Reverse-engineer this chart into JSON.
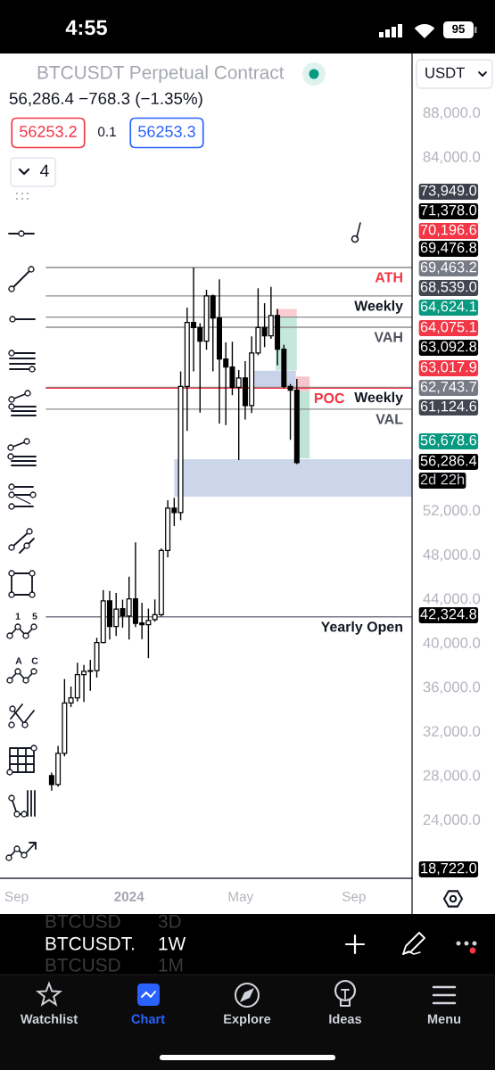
{
  "chart_data": {
    "type": "candlestick",
    "title": "BTCUSDT Perpetual Contract",
    "subtitle": "56,286.4 −768.3 (−1.35%)",
    "color": "#000000",
    "x": [
      "2023-10-09",
      "2023-10-16",
      "2023-10-23",
      "2023-10-30",
      "2023-11-06",
      "2023-11-13",
      "2023-11-20",
      "2023-11-27",
      "2023-12-04",
      "2023-12-11",
      "2023-12-18",
      "2023-12-25",
      "2024-01-01",
      "2024-01-08",
      "2024-01-15",
      "2024-01-22",
      "2024-01-29",
      "2024-02-05",
      "2024-02-12",
      "2024-02-19",
      "2024-02-26",
      "2024-03-04",
      "2024-03-11",
      "2024-03-18",
      "2024-03-25",
      "2024-04-01",
      "2024-04-08",
      "2024-04-15",
      "2024-04-22",
      "2024-04-29",
      "2024-05-06",
      "2024-05-13",
      "2024-05-20",
      "2024-05-27",
      "2024-06-03",
      "2024-06-10",
      "2024-06-17",
      "2024-06-24",
      "2024-07-01"
    ],
    "ohlc": [
      [
        27950,
        28220,
        26600,
        27140
      ],
      [
        27140,
        30640,
        26950,
        29970
      ],
      [
        29970,
        36700,
        29700,
        34540
      ],
      [
        34540,
        36020,
        34160,
        35000
      ],
      [
        35000,
        38170,
        34670,
        37090
      ],
      [
        37090,
        37980,
        34620,
        37390
      ],
      [
        37390,
        38440,
        35620,
        37460
      ],
      [
        37460,
        40430,
        36830,
        40000
      ],
      [
        40000,
        44760,
        39950,
        43770
      ],
      [
        43770,
        44680,
        40270,
        41450
      ],
      [
        41450,
        44490,
        40600,
        43020
      ],
      [
        43070,
        43880,
        41350,
        42420
      ],
      [
        42400,
        45970,
        40270,
        43950
      ],
      [
        43950,
        49070,
        41400,
        41730
      ],
      [
        41780,
        43600,
        40320,
        41610
      ],
      [
        41610,
        43070,
        38580,
        41990
      ],
      [
        42070,
        43900,
        41890,
        42530
      ],
      [
        42530,
        48530,
        42340,
        48340
      ],
      [
        48340,
        52890,
        47720,
        52160
      ],
      [
        52160,
        53100,
        50550,
        51760
      ],
      [
        51760,
        64540,
        51080,
        63190
      ],
      [
        63190,
        70320,
        59160,
        68980
      ],
      [
        68980,
        73949,
        64540,
        68520
      ],
      [
        68520,
        68900,
        60820,
        67280
      ],
      [
        67280,
        71930,
        66500,
        71370
      ],
      [
        71370,
        71500,
        64540,
        69380
      ],
      [
        69380,
        72880,
        59830,
        65670
      ],
      [
        65670,
        67170,
        59690,
        64940
      ],
      [
        64940,
        67230,
        62390,
        63110
      ],
      [
        63110,
        64670,
        56520,
        63950
      ],
      [
        63950,
        65480,
        60180,
        61440
      ],
      [
        61440,
        67710,
        60770,
        66210
      ],
      [
        66210,
        72070,
        66000,
        68520
      ],
      [
        68520,
        70720,
        66740,
        67770
      ],
      [
        67770,
        72200,
        67500,
        69600
      ],
      [
        69600,
        70190,
        65100,
        66560
      ],
      [
        66560,
        66960,
        63000,
        63190
      ],
      [
        63190,
        63400,
        58350,
        62840
      ],
      [
        62840,
        63860,
        56150,
        56286.4
      ]
    ],
    "series": [
      {
        "type": "area",
        "color": "#ccd6ea",
        "x": [
          "2024-02-19",
          "2024-11-03"
        ],
        "values": [
          null,
          null
        ],
        "lower": [
          53200,
          53200
        ],
        "upper": [
          56600,
          56600
        ]
      },
      {
        "type": "area",
        "color": "#c8d2e8",
        "x": [
          "2024-05-16",
          "2024-06-30"
        ],
        "values": [
          null,
          null
        ],
        "lower": [
          63100,
          63100
        ],
        "upper": [
          64600,
          64600
        ]
      },
      {
        "type": "area",
        "color": "#f9cdd1",
        "x": [
          "2024-06-08",
          "2024-07-01"
        ],
        "values": [
          null,
          null
        ],
        "lower": [
          69476.8,
          69476.8
        ],
        "upper": [
          70196.6,
          70196.6
        ]
      },
      {
        "type": "area",
        "color": "#c5e8dc",
        "x": [
          "2024-06-08",
          "2024-07-01"
        ],
        "values": [
          null,
          null
        ],
        "lower": [
          64624.1,
          64624.1
        ],
        "upper": [
          69476.8,
          69476.8
        ]
      },
      {
        "type": "area",
        "color": "#f6c5ca",
        "x": [
          "2024-06-30",
          "2024-07-15"
        ],
        "values": [
          null,
          null
        ],
        "lower": [
          62743.7,
          62743.7
        ],
        "upper": [
          64075.1,
          64075.1
        ]
      },
      {
        "type": "area",
        "color": "#bfe4d6",
        "x": [
          "2024-06-30",
          "2024-07-15"
        ],
        "values": [
          null,
          null
        ],
        "lower": [
          56678.6,
          56678.6
        ],
        "upper": [
          62743.7,
          62743.7
        ]
      }
    ],
    "ref_lines": [
      {
        "axis": "y",
        "value": 73949.0,
        "label": "ATH",
        "color": "#8c8c8c"
      },
      {
        "axis": "y",
        "value": 71378.0,
        "label": "Weekly",
        "color": "#8c8c8c"
      },
      {
        "axis": "y",
        "value": 69463.2,
        "color": "#8c8c8c"
      },
      {
        "axis": "y",
        "value": 68539.0,
        "label": "VAH",
        "color": "#8c8c8c"
      },
      {
        "axis": "y",
        "value": 63092.8,
        "label": "Weekly",
        "color": "#8c8c8c"
      },
      {
        "axis": "y",
        "value": 63017.9,
        "label": "POC",
        "color": "#f23645"
      },
      {
        "axis": "y",
        "value": 61124.6,
        "label": "VAL",
        "color": "#8c8c8c"
      },
      {
        "axis": "y",
        "value": 42324.8,
        "label": "Yearly Open",
        "color": "#787b86"
      }
    ],
    "annotations": [
      "4:55",
      "95",
      "USDT",
      "56253.2",
      "0.1",
      "56253.3",
      "4",
      "1",
      "5",
      "A",
      "C",
      "2d 22h",
      "BTCUSD",
      "3D",
      "BTCUSDT.",
      "1W",
      "BTCUSD",
      "1M",
      "Watchlist",
      "Chart",
      "Explore",
      "Ideas",
      "Menu",
      "73,949.0",
      "71,378.0",
      "70,196.6",
      "69,476.8",
      "69,463.2",
      "68,539.0",
      "64,624.1",
      "64,075.1",
      "63,092.8",
      "63,017.9",
      "62,743.7",
      "61,124.6",
      "56,678.6",
      "56,286.4",
      "42,324.8",
      "18,722.0"
    ],
    "xlim": [
      "2023-08-14",
      "2024-11-03"
    ],
    "ylim": [
      18660,
      93320
    ],
    "xticks": [
      {
        "value": "2023-09-01",
        "label": "Sep"
      },
      {
        "value": "2024-01-01",
        "label": "2024"
      },
      {
        "value": "2024-05-01",
        "label": "May"
      },
      {
        "value": "2024-09-01",
        "label": "Sep"
      }
    ],
    "yticks": [
      {
        "value": 88000,
        "label": "88,000.0"
      },
      {
        "value": 84000,
        "label": "84,000.0"
      },
      {
        "value": 52000,
        "label": "52,000.0"
      },
      {
        "value": 48000,
        "label": "48,000.0"
      },
      {
        "value": 44000,
        "label": "44,000.0"
      },
      {
        "value": 40000,
        "label": "40,000.0"
      },
      {
        "value": 36000,
        "label": "36,000.0"
      },
      {
        "value": 32000,
        "label": "32,000.0"
      },
      {
        "value": 28000,
        "label": "28,000.0"
      },
      {
        "value": 24000,
        "label": "24,000.0"
      }
    ]
  }
}
